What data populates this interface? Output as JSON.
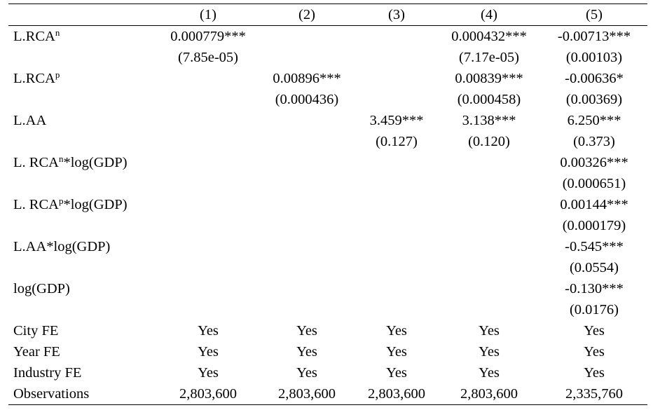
{
  "header": {
    "columns": [
      "(1)",
      "(2)",
      "(3)",
      "(4)",
      "(5)"
    ]
  },
  "rows": [
    {
      "label": "L.RCA",
      "sup": "n",
      "suffix": "",
      "coef": [
        "0.000779***",
        "",
        "",
        "0.000432***",
        "-0.00713***"
      ],
      "se": [
        "(7.85e-05)",
        "",
        "",
        "(7.17e-05)",
        "(0.00103)"
      ]
    },
    {
      "label": "L.RCA",
      "sup": "p",
      "suffix": "",
      "coef": [
        "",
        "0.00896***",
        "",
        "0.00839***",
        "-0.00636*"
      ],
      "se": [
        "",
        "(0.000436)",
        "",
        "(0.000458)",
        "(0.00369)"
      ]
    },
    {
      "label": "L.AA",
      "sup": "",
      "suffix": "",
      "coef": [
        "",
        "",
        "3.459***",
        "3.138***",
        "6.250***"
      ],
      "se": [
        "",
        "",
        "(0.127)",
        "(0.120)",
        "(0.373)"
      ]
    },
    {
      "label": "L. RCA",
      "sup": "n",
      "suffix": "*log(GDP)",
      "coef": [
        "",
        "",
        "",
        "",
        "0.00326***"
      ],
      "se": [
        "",
        "",
        "",
        "",
        "(0.000651)"
      ]
    },
    {
      "label": "L. RCA",
      "sup": "p",
      "suffix": "*log(GDP)",
      "coef": [
        "",
        "",
        "",
        "",
        "0.00144***"
      ],
      "se": [
        "",
        "",
        "",
        "",
        "(0.000179)"
      ]
    },
    {
      "label": "L.AA*log(GDP)",
      "sup": "",
      "suffix": "",
      "coef": [
        "",
        "",
        "",
        "",
        "-0.545***"
      ],
      "se": [
        "",
        "",
        "",
        "",
        "(0.0554)"
      ]
    },
    {
      "label": "log(GDP)",
      "sup": "",
      "suffix": "",
      "coef": [
        "",
        "",
        "",
        "",
        "-0.130***"
      ],
      "se": [
        "",
        "",
        "",
        "",
        "(0.0176)"
      ]
    }
  ],
  "footer_rows": [
    {
      "label": "City FE",
      "values": [
        "Yes",
        "Yes",
        "Yes",
        "Yes",
        "Yes"
      ]
    },
    {
      "label": "Year FE",
      "values": [
        "Yes",
        "Yes",
        "Yes",
        "Yes",
        "Yes"
      ]
    },
    {
      "label": "Industry FE",
      "values": [
        "Yes",
        "Yes",
        "Yes",
        "Yes",
        "Yes"
      ]
    },
    {
      "label": "Observations",
      "values": [
        "2,803,600",
        "2,803,600",
        "2,803,600",
        "2,803,600",
        "2,335,760"
      ]
    }
  ]
}
